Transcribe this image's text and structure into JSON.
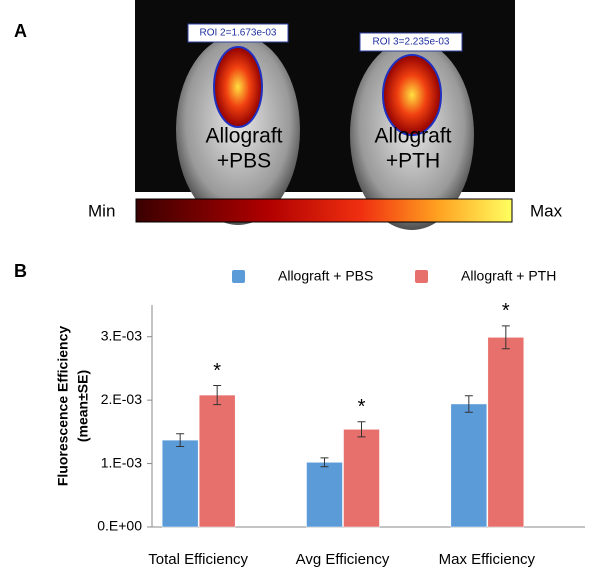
{
  "panel_a": {
    "label": "A",
    "roi_labels": [
      "ROI 2=1.673e-03",
      "ROI 3=2.235e-03"
    ],
    "mouse_labels": [
      [
        "Allograft",
        "+PBS"
      ],
      [
        "Allograft",
        "+PTH"
      ]
    ],
    "scale_min": "Min",
    "scale_max": "Max"
  },
  "chart_data": {
    "type": "bar",
    "panel_label": "B",
    "ylabel": [
      "Fluorescence Efficiency",
      "(mean±SE)"
    ],
    "categories": [
      "Total Efficiency",
      "Avg Efficiency",
      "Max Efficiency"
    ],
    "series": [
      {
        "name": "Allograft + PBS",
        "color": "#5b9bd8",
        "values": [
          0.00137,
          0.00102,
          0.00194
        ],
        "errors": [
          0.0001,
          7e-05,
          0.00013
        ]
      },
      {
        "name": "Allograft + PTH",
        "color": "#e8706c",
        "values": [
          0.00208,
          0.00154,
          0.00299
        ],
        "errors": [
          0.00015,
          0.00012,
          0.00018
        ]
      }
    ],
    "annotations": [
      "*",
      "*",
      "*"
    ],
    "ylim": [
      0,
      0.0035
    ],
    "yticks": [
      {
        "value": 0,
        "label": "0.E+00"
      },
      {
        "value": 0.001,
        "label": "1.E-03"
      },
      {
        "value": 0.002,
        "label": "2.E-03"
      },
      {
        "value": 0.003,
        "label": "3.E-03"
      }
    ],
    "legend": "top"
  }
}
